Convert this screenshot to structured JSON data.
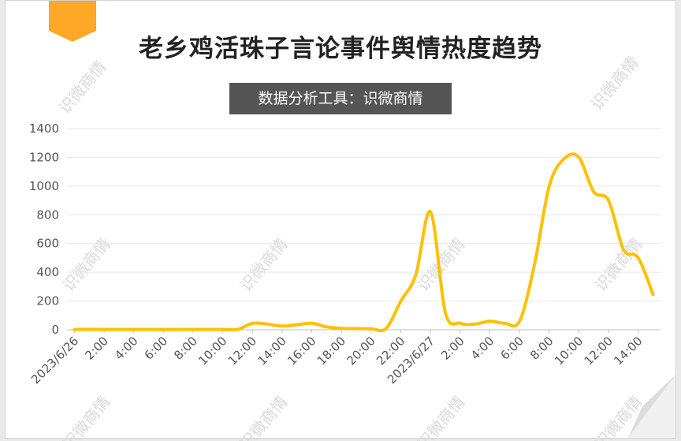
{
  "title": "老乡鸡活珠子言论事件舆情热度趋势",
  "subtitle": "数据分析工具：识微商情",
  "watermark": "识微商情",
  "colors": {
    "line": "#FFC000",
    "accent_tab": "#FFA726",
    "grid": "#e6e6e6",
    "axis": "#bfbfbf"
  },
  "chart_data": {
    "type": "line",
    "title": "老乡鸡活珠子言论事件舆情热度趋势",
    "xlabel": "",
    "ylabel": "",
    "ylim": [
      0,
      1400
    ],
    "yticks": [
      "0",
      "200",
      "400",
      "600",
      "800",
      "1000",
      "1200",
      "1400"
    ],
    "xticks": [
      "2023/6/26",
      "2:00",
      "4:00",
      "6:00",
      "8:00",
      "10:00",
      "12:00",
      "14:00",
      "16:00",
      "18:00",
      "20:00",
      "22:00",
      "2023/6/27",
      "2:00",
      "4:00",
      "6:00",
      "8:00",
      "10:00",
      "12:00",
      "14:00"
    ],
    "grid": true,
    "series": [
      {
        "name": "",
        "x": [
          "2023/6/26 0:00",
          "2023/6/26 1:00",
          "2023/6/26 2:00",
          "2023/6/26 3:00",
          "2023/6/26 4:00",
          "2023/6/26 5:00",
          "2023/6/26 6:00",
          "2023/6/26 7:00",
          "2023/6/26 8:00",
          "2023/6/26 9:00",
          "2023/6/26 10:00",
          "2023/6/26 11:00",
          "2023/6/26 12:00",
          "2023/6/26 13:00",
          "2023/6/26 14:00",
          "2023/6/26 15:00",
          "2023/6/26 16:00",
          "2023/6/26 17:00",
          "2023/6/26 18:00",
          "2023/6/26 19:00",
          "2023/6/26 20:00",
          "2023/6/26 21:00",
          "2023/6/26 22:00",
          "2023/6/26 23:00",
          "2023/6/27 0:00",
          "2023/6/27 1:00",
          "2023/6/27 2:00",
          "2023/6/27 3:00",
          "2023/6/27 4:00",
          "2023/6/27 5:00",
          "2023/6/27 6:00",
          "2023/6/27 7:00",
          "2023/6/27 8:00",
          "2023/6/27 9:00",
          "2023/6/27 10:00",
          "2023/6/27 11:00",
          "2023/6/27 12:00",
          "2023/6/27 13:00",
          "2023/6/27 14:00",
          "2023/6/27 15:00"
        ],
        "values": [
          2,
          3,
          2,
          2,
          2,
          2,
          2,
          2,
          2,
          2,
          2,
          2,
          45,
          40,
          25,
          35,
          45,
          20,
          10,
          8,
          7,
          8,
          200,
          380,
          820,
          120,
          45,
          40,
          60,
          45,
          60,
          450,
          1000,
          1190,
          1200,
          960,
          900,
          560,
          500,
          245
        ]
      }
    ]
  }
}
